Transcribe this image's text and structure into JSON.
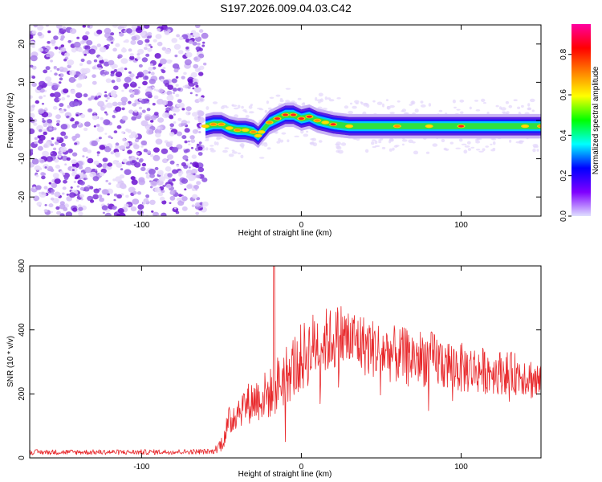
{
  "title": "S197.2026.009.04.03.C42",
  "chart_data": [
    {
      "type": "heatmap",
      "name": "spectrogram",
      "xlabel": "Height of straight line (km)",
      "ylabel": "Frequency (Hz)",
      "xlim": [
        -170,
        150
      ],
      "ylim": [
        -25,
        25
      ],
      "xticks": [
        -100,
        0,
        100
      ],
      "yticks": [
        -20,
        -10,
        0,
        10,
        20
      ],
      "xtick_labels": [
        "-100",
        "0",
        "100"
      ],
      "ytick_labels": [
        "-20",
        "-10",
        "0",
        "10",
        "20"
      ],
      "noise_region_x": [
        -170,
        -60
      ],
      "ridge": {
        "x": [
          -60,
          -55,
          -50,
          -45,
          -40,
          -35,
          -30,
          -27,
          -25,
          -20,
          -15,
          -10,
          -5,
          0,
          5,
          10,
          15,
          20,
          30,
          40,
          60,
          80,
          100,
          120,
          140,
          150
        ],
        "freq": [
          -1.5,
          -1.0,
          -1.0,
          -2.0,
          -2.5,
          -2.5,
          -3.0,
          -4.0,
          -3.0,
          -0.5,
          0.5,
          1.5,
          1.5,
          0.5,
          1.0,
          0.0,
          -0.5,
          -1.0,
          -1.5,
          -1.5,
          -1.5,
          -1.5,
          -1.5,
          -1.5,
          -1.5,
          -1.5
        ],
        "amplitude": [
          0.7,
          0.85,
          0.8,
          0.7,
          0.85,
          0.75,
          0.8,
          0.6,
          0.65,
          0.8,
          0.9,
          0.95,
          0.9,
          0.95,
          0.9,
          0.8,
          0.7,
          0.9,
          0.6,
          0.55,
          0.85,
          0.75,
          0.95,
          0.5,
          0.6,
          0.85
        ]
      },
      "colorbar": {
        "label": "Normalized spectral amplitude",
        "range": [
          0,
          0.95
        ],
        "ticks": [
          0.0,
          0.2,
          0.4,
          0.6,
          0.8
        ],
        "tick_labels": [
          "0.0",
          "0.2",
          "0.4",
          "0.6",
          "0.8"
        ],
        "colors": [
          "#e0e0ff",
          "#7f00ff",
          "#0000ff",
          "#00ffff",
          "#00ff00",
          "#ffff00",
          "#ff8000",
          "#ff0000",
          "#ff00a0"
        ]
      }
    },
    {
      "type": "line",
      "name": "snr",
      "xlabel": "Height of straight line (km)",
      "ylabel": "SNR (10 * v/v)",
      "xlim": [
        -170,
        150
      ],
      "ylim": [
        0,
        600
      ],
      "xticks": [
        -100,
        0,
        100
      ],
      "yticks": [
        0,
        200,
        400,
        600
      ],
      "xtick_labels": [
        "-100",
        "0",
        "100"
      ],
      "ytick_labels": [
        "0",
        "200",
        "400",
        "600"
      ],
      "color": "#e8282b",
      "envelope": {
        "x": [
          -170,
          -100,
          -55,
          -50,
          -45,
          -40,
          -30,
          -20,
          -17,
          -15,
          -10,
          0,
          10,
          20,
          25,
          30,
          35,
          40,
          60,
          80,
          100,
          120,
          140,
          150
        ],
        "y": [
          18,
          18,
          20,
          45,
          110,
          150,
          180,
          200,
          210,
          230,
          260,
          310,
          360,
          370,
          380,
          370,
          365,
          350,
          320,
          310,
          280,
          270,
          260,
          230
        ],
        "amp": [
          8,
          8,
          8,
          25,
          55,
          55,
          70,
          80,
          80,
          90,
          100,
          110,
          110,
          100,
          110,
          100,
          100,
          95,
          90,
          90,
          80,
          70,
          65,
          70
        ]
      },
      "peak": {
        "x": -17,
        "y": 600
      }
    }
  ]
}
